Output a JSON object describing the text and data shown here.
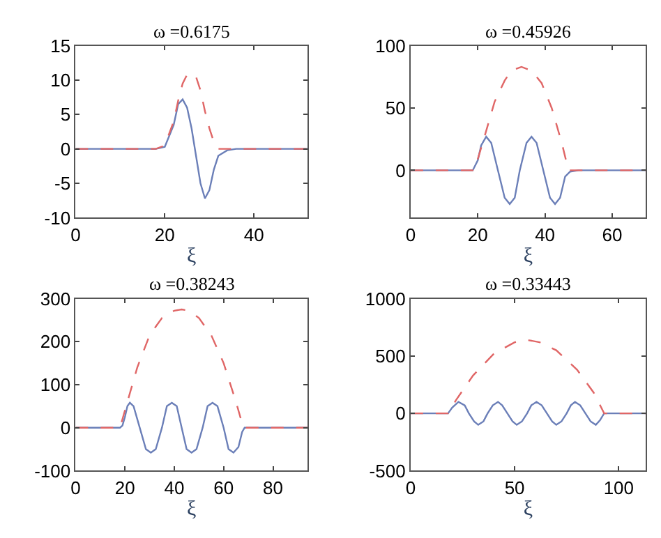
{
  "chart_data": [
    {
      "type": "line",
      "title": "ω =0.6175",
      "xlabel": "ξ",
      "xlim": [
        0,
        52
      ],
      "ylim": [
        -10,
        15
      ],
      "xticks": [
        0,
        20,
        40
      ],
      "yticks": [
        -10,
        -5,
        0,
        5,
        10,
        15
      ],
      "marker": "none",
      "series": [
        {
          "color": "#6b7fb8",
          "line_style": "solid",
          "x": [
            0,
            18,
            20,
            22,
            23,
            24,
            25,
            26,
            27,
            28,
            29,
            30,
            31,
            32,
            34,
            36,
            52
          ],
          "values": [
            0,
            0,
            0.3,
            3.5,
            6.5,
            7.2,
            6,
            3,
            -1,
            -5,
            -7.2,
            -6,
            -3,
            -1,
            -0.2,
            0,
            0
          ]
        },
        {
          "color": "#e06666",
          "line_style": "dashed",
          "x": [
            0,
            18,
            20,
            22,
            23,
            24,
            25,
            26,
            27,
            28,
            29,
            30,
            31,
            32,
            52
          ],
          "values": [
            0,
            0,
            0.5,
            4,
            7,
            9.5,
            10.8,
            11,
            10.5,
            8.5,
            5.5,
            3,
            1,
            0,
            0
          ]
        }
      ]
    },
    {
      "type": "line",
      "title": "ω =0.45926",
      "xlabel": "ξ",
      "xlim": [
        0,
        70
      ],
      "ylim": [
        -38,
        100
      ],
      "xticks": [
        0,
        20,
        40,
        60
      ],
      "yticks": [
        0,
        50,
        100
      ],
      "marker": "none",
      "series": [
        {
          "color": "#6b7fb8",
          "line_style": "solid",
          "x": [
            0,
            18.5,
            20,
            21,
            22.5,
            24,
            26,
            28,
            29.5,
            31,
            32.5,
            34.5,
            36,
            37.5,
            39.5,
            41.5,
            43,
            44.5,
            46,
            47.5,
            50,
            70
          ],
          "values": [
            0,
            0,
            8,
            20,
            27,
            22,
            0,
            -22,
            -27,
            -22,
            0,
            22,
            27,
            22,
            0,
            -22,
            -27,
            -22,
            -5,
            -1,
            0,
            0
          ]
        },
        {
          "color": "#e06666",
          "line_style": "dashed",
          "x": [
            0,
            19,
            22,
            25,
            28,
            30,
            33,
            36,
            39,
            42,
            45,
            47,
            70
          ],
          "values": [
            0,
            0,
            27,
            55,
            72,
            80,
            83,
            80,
            70,
            50,
            22,
            0,
            0
          ]
        }
      ]
    },
    {
      "type": "line",
      "title": "ω =0.38243",
      "xlabel": "ξ",
      "xlim": [
        0,
        94
      ],
      "ylim": [
        -100,
        300
      ],
      "xticks": [
        0,
        20,
        40,
        60,
        80
      ],
      "yticks": [
        -100,
        0,
        100,
        200,
        300
      ],
      "marker": "none",
      "series": [
        {
          "color": "#6b7fb8",
          "line_style": "solid",
          "x": [
            0,
            18,
            19,
            20,
            21,
            22,
            23.5,
            26,
            28.5,
            30.5,
            32.5,
            35,
            37,
            39,
            41,
            43,
            45,
            47,
            49,
            51.5,
            53.5,
            55.5,
            57.5,
            60,
            62,
            64,
            66,
            67.5,
            68.5,
            94
          ],
          "values": [
            0,
            0,
            5,
            25,
            50,
            58,
            50,
            0,
            -50,
            -58,
            -50,
            0,
            50,
            58,
            50,
            0,
            -50,
            -58,
            -50,
            0,
            50,
            58,
            50,
            0,
            -50,
            -58,
            -45,
            -10,
            0,
            0
          ]
        },
        {
          "color": "#e06666",
          "line_style": "dashed",
          "x": [
            0,
            18,
            20,
            25,
            30,
            35,
            40,
            43,
            46,
            50,
            55,
            60,
            65,
            68,
            94
          ],
          "values": [
            0,
            0,
            40,
            140,
            215,
            255,
            272,
            275,
            272,
            255,
            215,
            150,
            60,
            0,
            0
          ]
        }
      ]
    },
    {
      "type": "line",
      "title": "ω =0.33443",
      "xlabel": "ξ",
      "xlim": [
        0,
        113
      ],
      "ylim": [
        -500,
        1000
      ],
      "xticks": [
        0,
        50,
        100
      ],
      "yticks": [
        -500,
        0,
        500,
        1000
      ],
      "marker": "none",
      "series": [
        {
          "color": "#6b7fb8",
          "line_style": "solid",
          "x": [
            0,
            18,
            20,
            23,
            26,
            28,
            30.5,
            32.5,
            35,
            37,
            39.5,
            42,
            44,
            46.5,
            49,
            51,
            53.5,
            56,
            58,
            60.5,
            63,
            65.5,
            68,
            70,
            72.5,
            75,
            77,
            79,
            81.5,
            84,
            86.5,
            89,
            91,
            93,
            113
          ],
          "values": [
            0,
            0,
            50,
            100,
            70,
            0,
            -70,
            -100,
            -70,
            0,
            70,
            100,
            70,
            0,
            -70,
            -100,
            -70,
            0,
            70,
            100,
            70,
            0,
            -70,
            -100,
            -70,
            0,
            70,
            100,
            70,
            0,
            -70,
            -100,
            -60,
            0,
            0
          ]
        },
        {
          "color": "#e06666",
          "line_style": "dashed",
          "x": [
            0,
            18,
            22,
            30,
            40,
            50,
            56,
            62,
            70,
            80,
            88,
            93,
            113
          ],
          "values": [
            0,
            0,
            120,
            330,
            520,
            620,
            640,
            620,
            550,
            380,
            180,
            0,
            0
          ]
        }
      ]
    }
  ]
}
